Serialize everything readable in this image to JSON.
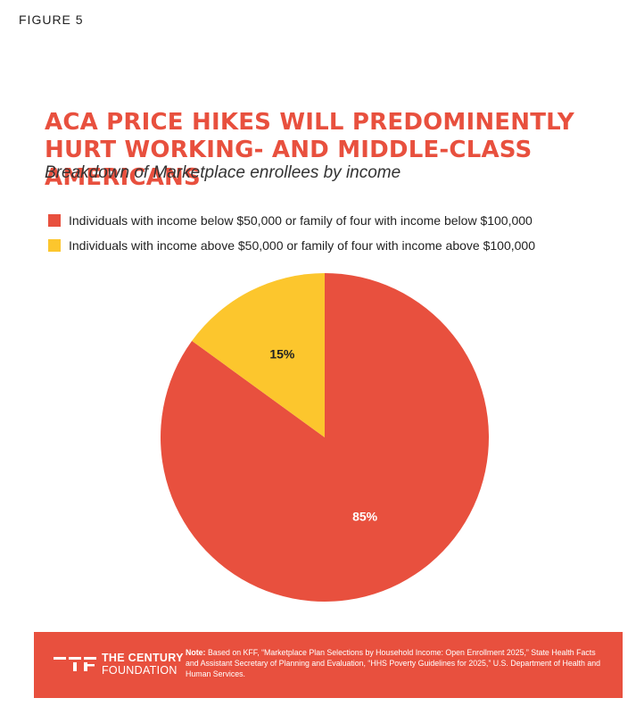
{
  "figure_label": "FIGURE 5",
  "chart_data": {
    "type": "pie",
    "title": "ACA PRICE HIKES WILL PREDOMINENTLY HURT WORKING- AND MIDDLE-CLASS AMERICANS",
    "subtitle": "Breakdown of Marketplace enrollees by income",
    "legend_position": "top-left",
    "slices": [
      {
        "label": "Individuals with income below $50,000 or family of four with income below $100,000",
        "value": 85,
        "value_label": "85%",
        "color": "#e8503e",
        "label_color": "#ffffff"
      },
      {
        "label": "Individuals with income above $50,000 or family of four with income above $100,000",
        "value": 15,
        "value_label": "15%",
        "color": "#fcc62d",
        "label_color": "#222222"
      }
    ]
  },
  "footer": {
    "logo_line1": "THE CENTURY",
    "logo_line2": "FOUNDATION",
    "note_label": "Note:",
    "note_text": "Based on KFF, “Marketplace Plan Selections by Household Income: Open Enrollment 2025,” State Health Facts and Assistant Secretary of Planning and Evaluation, “HHS Poverty Guidelines for 2025,” U.S. Department of Health and Human Services.",
    "background": "#e8503e"
  }
}
